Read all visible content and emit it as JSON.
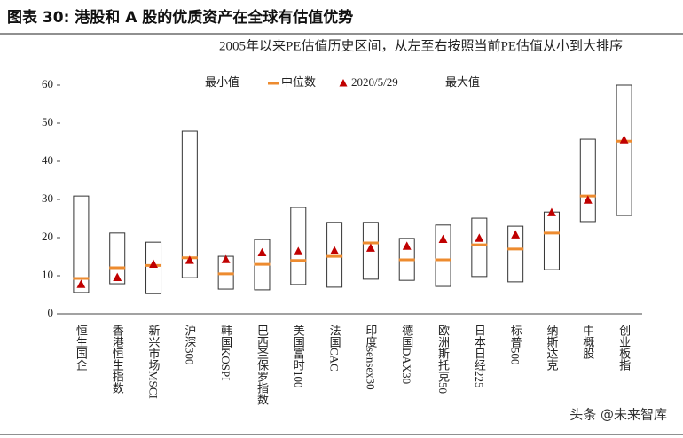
{
  "chart_data": {
    "type": "range",
    "title": "图表 30:  港股和 A 股的优质资产在全球有估值优势",
    "subtitle": "2005年以来PE估值历史区间，从左至右按照当前PE估值从小到大排序",
    "watermark": "头条 @未来智库",
    "categories": [
      "恒生国企",
      "香港恒生指数",
      "新兴市场MSCI",
      "沪深300",
      "韩国KOSPI",
      "巴西圣保罗指数",
      "美国富时100",
      "法国CAC",
      "印度sensex30",
      "德国DAX30",
      "欧洲斯托克50",
      "日本日经225",
      "标普500",
      "纳斯达克",
      "中概股",
      "创业板指"
    ],
    "series": [
      {
        "name": "最小值",
        "marker": "box-bottom",
        "color": "#333333",
        "values": [
          5.6,
          7.9,
          5.3,
          9.5,
          6.5,
          6.3,
          7.7,
          7.0,
          9.1,
          8.8,
          7.2,
          9.8,
          8.4,
          11.6,
          24.2,
          25.8
        ]
      },
      {
        "name": "中位数",
        "marker": "dash",
        "color": "#ed8b2f",
        "values": [
          9.3,
          12.1,
          12.7,
          14.7,
          10.5,
          13.0,
          14.0,
          15.1,
          18.6,
          14.2,
          14.2,
          18.1,
          17.0,
          21.2,
          30.9,
          45.3
        ]
      },
      {
        "name": "2020/5/29",
        "marker": "triangle",
        "color": "#c00000",
        "values": [
          7.7,
          9.5,
          13.0,
          14.0,
          14.2,
          16.0,
          16.3,
          16.5,
          17.2,
          17.7,
          19.5,
          19.8,
          20.7,
          26.5,
          29.8,
          45.6
        ]
      },
      {
        "name": "最大值",
        "marker": "box-top",
        "color": "#333333",
        "values": [
          30.9,
          21.2,
          18.8,
          47.9,
          15.1,
          19.5,
          27.9,
          24.0,
          24.0,
          19.8,
          23.3,
          25.1,
          23.0,
          26.7,
          45.8,
          60
        ]
      }
    ],
    "ylim": [
      0,
      60
    ],
    "yticks": [
      0,
      10,
      20,
      30,
      40,
      50,
      60
    ]
  }
}
